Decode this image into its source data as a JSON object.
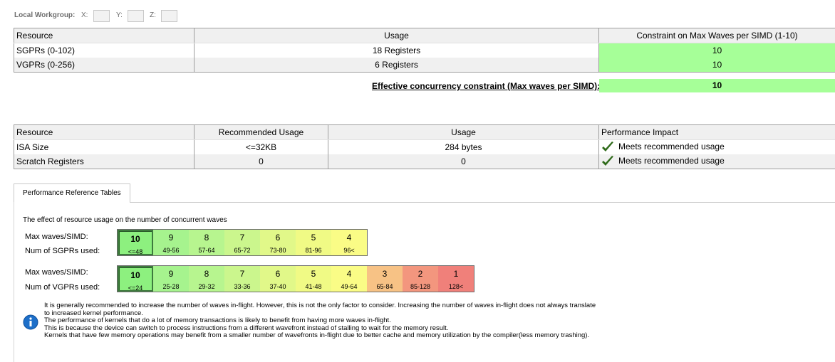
{
  "workgroup": {
    "label": "Local Workgroup:",
    "x_label": "X:",
    "y_label": "Y:",
    "z_label": "Z:",
    "x_value": "",
    "y_value": "",
    "z_value": ""
  },
  "registers_table": {
    "headers": [
      "Resource",
      "Usage",
      "Constraint on Max Waves per SIMD (1-10)"
    ],
    "rows": [
      {
        "resource": "SGPRs (0-102)",
        "usage": "18 Registers",
        "constraint": "10"
      },
      {
        "resource": "VGPRs (0-256)",
        "usage": "6 Registers",
        "constraint": "10"
      }
    ],
    "effective_label": "Effective concurrency constraint (Max waves per SIMD):",
    "effective_value": "10"
  },
  "resources_table": {
    "headers": [
      "Resource",
      "Recommended Usage",
      "Usage",
      "Performance Impact"
    ],
    "rows": [
      {
        "resource": "ISA Size",
        "recommended": "<=32KB",
        "usage": "284 bytes",
        "impact": "Meets recommended usage"
      },
      {
        "resource": "Scratch Registers",
        "recommended": "0",
        "usage": "0",
        "impact": "Meets recommended usage"
      }
    ]
  },
  "tab": {
    "label": "Performance Reference Tables"
  },
  "reference": {
    "description": "The effect of resource usage on the number of concurrent waves",
    "sgpr": {
      "waves_label": "Max waves/SIMD:",
      "used_label": "Num of SGPRs used:",
      "cells": [
        {
          "waves": "10",
          "range": "<=48",
          "color": "#8df07f",
          "selected": true
        },
        {
          "waves": "9",
          "range": "49-56",
          "color": "#a6f38e"
        },
        {
          "waves": "8",
          "range": "57-64",
          "color": "#b7f58f"
        },
        {
          "waves": "7",
          "range": "65-72",
          "color": "#cbf68d"
        },
        {
          "waves": "6",
          "range": "73-80",
          "color": "#e1f889"
        },
        {
          "waves": "5",
          "range": "81-96",
          "color": "#f0fa85"
        },
        {
          "waves": "4",
          "range": "96<",
          "color": "#fafc86"
        }
      ]
    },
    "vgpr": {
      "waves_label": "Max waves/SIMD:",
      "used_label": "Num of VGPRs used:",
      "cells": [
        {
          "waves": "10",
          "range": "<=24",
          "color": "#8df07f",
          "selected": true
        },
        {
          "waves": "9",
          "range": "25-28",
          "color": "#a6f38e"
        },
        {
          "waves": "8",
          "range": "29-32",
          "color": "#b7f58f"
        },
        {
          "waves": "7",
          "range": "33-36",
          "color": "#cbf68d"
        },
        {
          "waves": "6",
          "range": "37-40",
          "color": "#e1f889"
        },
        {
          "waves": "5",
          "range": "41-48",
          "color": "#f0fa85"
        },
        {
          "waves": "4",
          "range": "49-64",
          "color": "#fafc86"
        },
        {
          "waves": "3",
          "range": "65-84",
          "color": "#f7c285"
        },
        {
          "waves": "2",
          "range": "85-128",
          "color": "#f3967e"
        },
        {
          "waves": "1",
          "range": "128<",
          "color": "#f0807a"
        }
      ]
    },
    "info_lines": [
      "It is generally recommended to increase the number of waves in-flight. However, this is not the only factor to consider. Increasing the number of waves in-flight does not always translate",
      "to increased kernel performance.",
      "The performance of kernels that do a lot of memory transactions is likely to benefit from having more waves in-flight.",
      "This is because the device can switch to process instructions from a different wavefront instead of stalling to wait for the memory result.",
      "Kernels that have few memory operations may benefit from a smaller number of wavefronts in-flight due to better cache and memory utilization by the compiler(less memory trashing)."
    ]
  },
  "colors": {
    "constraint_green": "#a6ff98",
    "check_green": "#2f6b1a",
    "info_blue": "#1d6fc9"
  }
}
